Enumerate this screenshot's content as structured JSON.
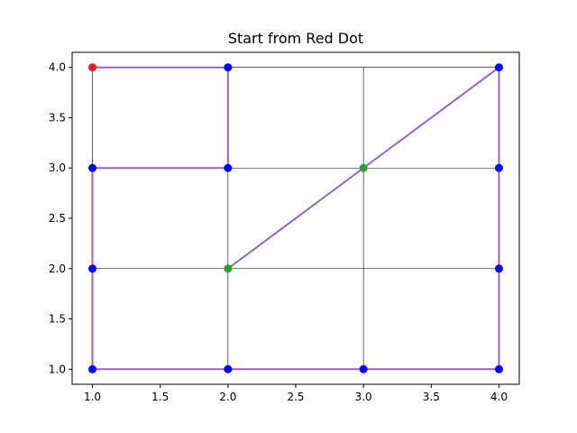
{
  "chart_data": {
    "type": "line",
    "title": "Start from Red Dot",
    "xlabel": "",
    "ylabel": "",
    "xlim": [
      0.85,
      4.15
    ],
    "ylim": [
      0.85,
      4.15
    ],
    "x_ticks": [
      "1.0",
      "1.5",
      "2.0",
      "2.5",
      "3.0",
      "3.5",
      "4.0"
    ],
    "y_ticks": [
      "1.0",
      "1.5",
      "2.0",
      "2.5",
      "3.0",
      "3.5",
      "4.0"
    ],
    "grid": {
      "shown": true,
      "x_lines": [
        1,
        2,
        3,
        4
      ],
      "y_lines": [
        1,
        2,
        3,
        4
      ],
      "color": "#000000"
    },
    "path": {
      "color": "#9467bd",
      "points": [
        [
          1,
          4
        ],
        [
          2,
          4
        ],
        [
          2,
          3
        ],
        [
          1,
          3
        ],
        [
          1,
          2
        ],
        [
          1,
          1
        ],
        [
          2,
          1
        ],
        [
          3,
          1
        ],
        [
          4,
          1
        ],
        [
          4,
          2
        ],
        [
          4,
          3
        ],
        [
          4,
          4
        ],
        [
          3,
          3
        ],
        [
          2,
          2
        ]
      ]
    },
    "dots": [
      {
        "x": 1,
        "y": 4,
        "color": "#d62728"
      },
      {
        "x": 2,
        "y": 4,
        "color": "#0000ff"
      },
      {
        "x": 4,
        "y": 4,
        "color": "#0000ff"
      },
      {
        "x": 1,
        "y": 3,
        "color": "#0000ff"
      },
      {
        "x": 2,
        "y": 3,
        "color": "#0000ff"
      },
      {
        "x": 3,
        "y": 3,
        "color": "#2ca02c"
      },
      {
        "x": 4,
        "y": 3,
        "color": "#0000ff"
      },
      {
        "x": 1,
        "y": 2,
        "color": "#0000ff"
      },
      {
        "x": 2,
        "y": 2,
        "color": "#2ca02c"
      },
      {
        "x": 4,
        "y": 2,
        "color": "#0000ff"
      },
      {
        "x": 1,
        "y": 1,
        "color": "#0000ff"
      },
      {
        "x": 2,
        "y": 1,
        "color": "#0000ff"
      },
      {
        "x": 3,
        "y": 1,
        "color": "#0000ff"
      },
      {
        "x": 4,
        "y": 1,
        "color": "#0000ff"
      }
    ]
  }
}
